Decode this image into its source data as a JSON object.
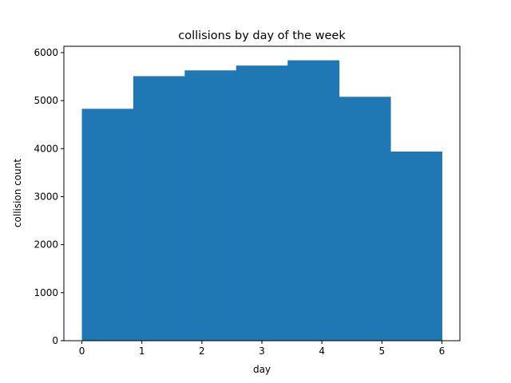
{
  "chart_data": {
    "type": "bar",
    "title": "collisions by day of the week",
    "xlabel": "day",
    "ylabel": "collision count",
    "bins": [
      {
        "start": 0.0,
        "end": 0.857,
        "value": 4830
      },
      {
        "start": 0.857,
        "end": 1.714,
        "value": 5510
      },
      {
        "start": 1.714,
        "end": 2.571,
        "value": 5630
      },
      {
        "start": 2.571,
        "end": 3.429,
        "value": 5730
      },
      {
        "start": 3.429,
        "end": 4.286,
        "value": 5840
      },
      {
        "start": 4.286,
        "end": 5.143,
        "value": 5080
      },
      {
        "start": 5.143,
        "end": 6.0,
        "value": 3940
      }
    ],
    "xlim": [
      -0.3,
      6.3
    ],
    "ylim": [
      0,
      6132
    ],
    "xticks": [
      0,
      1,
      2,
      3,
      4,
      5,
      6
    ],
    "yticks": [
      0,
      1000,
      2000,
      3000,
      4000,
      5000,
      6000
    ],
    "bar_color": "#1f77b4",
    "grid": false
  }
}
